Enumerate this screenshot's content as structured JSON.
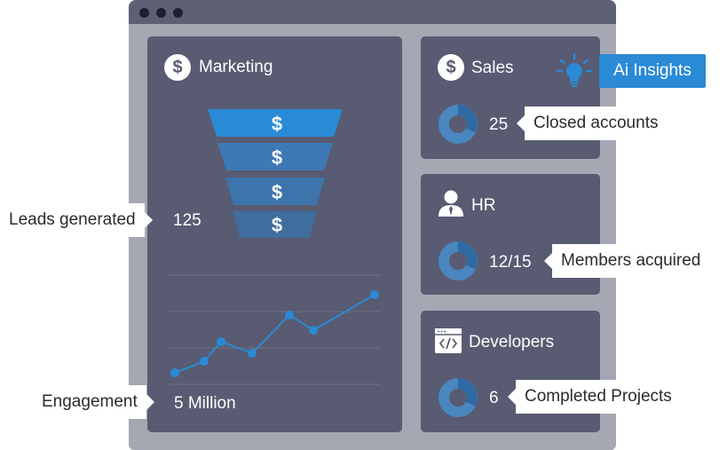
{
  "marketing": {
    "title": "Marketing",
    "leads_label": "Leads generated",
    "leads_value": "125",
    "engagement_label": "Engagement",
    "engagement_value": "5 Million",
    "funnel_symbol": "$",
    "engagement_trend": [
      0.0,
      0.13,
      0.35,
      0.22,
      0.65,
      0.48,
      0.88
    ]
  },
  "sales": {
    "title": "Sales",
    "value": "25",
    "label": "Closed accounts"
  },
  "insights": {
    "label": "Ai Insights"
  },
  "hr": {
    "title": "HR",
    "value": "12/15",
    "label": "Members acquired"
  },
  "developers": {
    "title": "Developers",
    "value": "6",
    "label": "Completed Projects"
  },
  "colors": {
    "window": "#a5a8b3",
    "titlebar": "#5d6075",
    "panel": "#585b71",
    "accent": "#2a8ad6",
    "funnel_top": "#2a8ad6",
    "funnel_mid": "#3d79b5",
    "funnel_low": "#3f6d9e",
    "donut_dark": "#2f6aa3",
    "donut_light": "#4a86c0"
  }
}
